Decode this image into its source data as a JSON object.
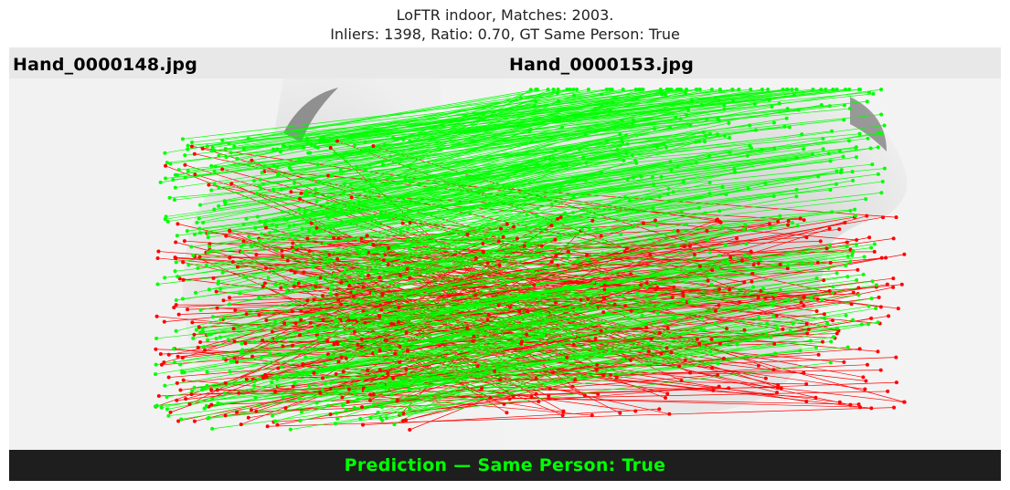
{
  "title": {
    "line1": "LoFTR indoor, Matches: 2003.",
    "line2": "Inliers: 1398, Ratio: 0.70, GT Same Person: True"
  },
  "images": {
    "left_label": "Hand_0000148.jpg",
    "right_label": "Hand_0000153.jpg"
  },
  "prediction": {
    "text": "Prediction — Same Person: True",
    "color": "#00ff00"
  },
  "colors": {
    "inlier": "#00ff00",
    "outlier": "#ff0000",
    "header_band": "#e8e8e8",
    "footer_band": "#1e1e1e"
  },
  "matches": {
    "total": 2003,
    "inliers": 1398,
    "ratio": 0.7,
    "gt_same_person": true
  }
}
